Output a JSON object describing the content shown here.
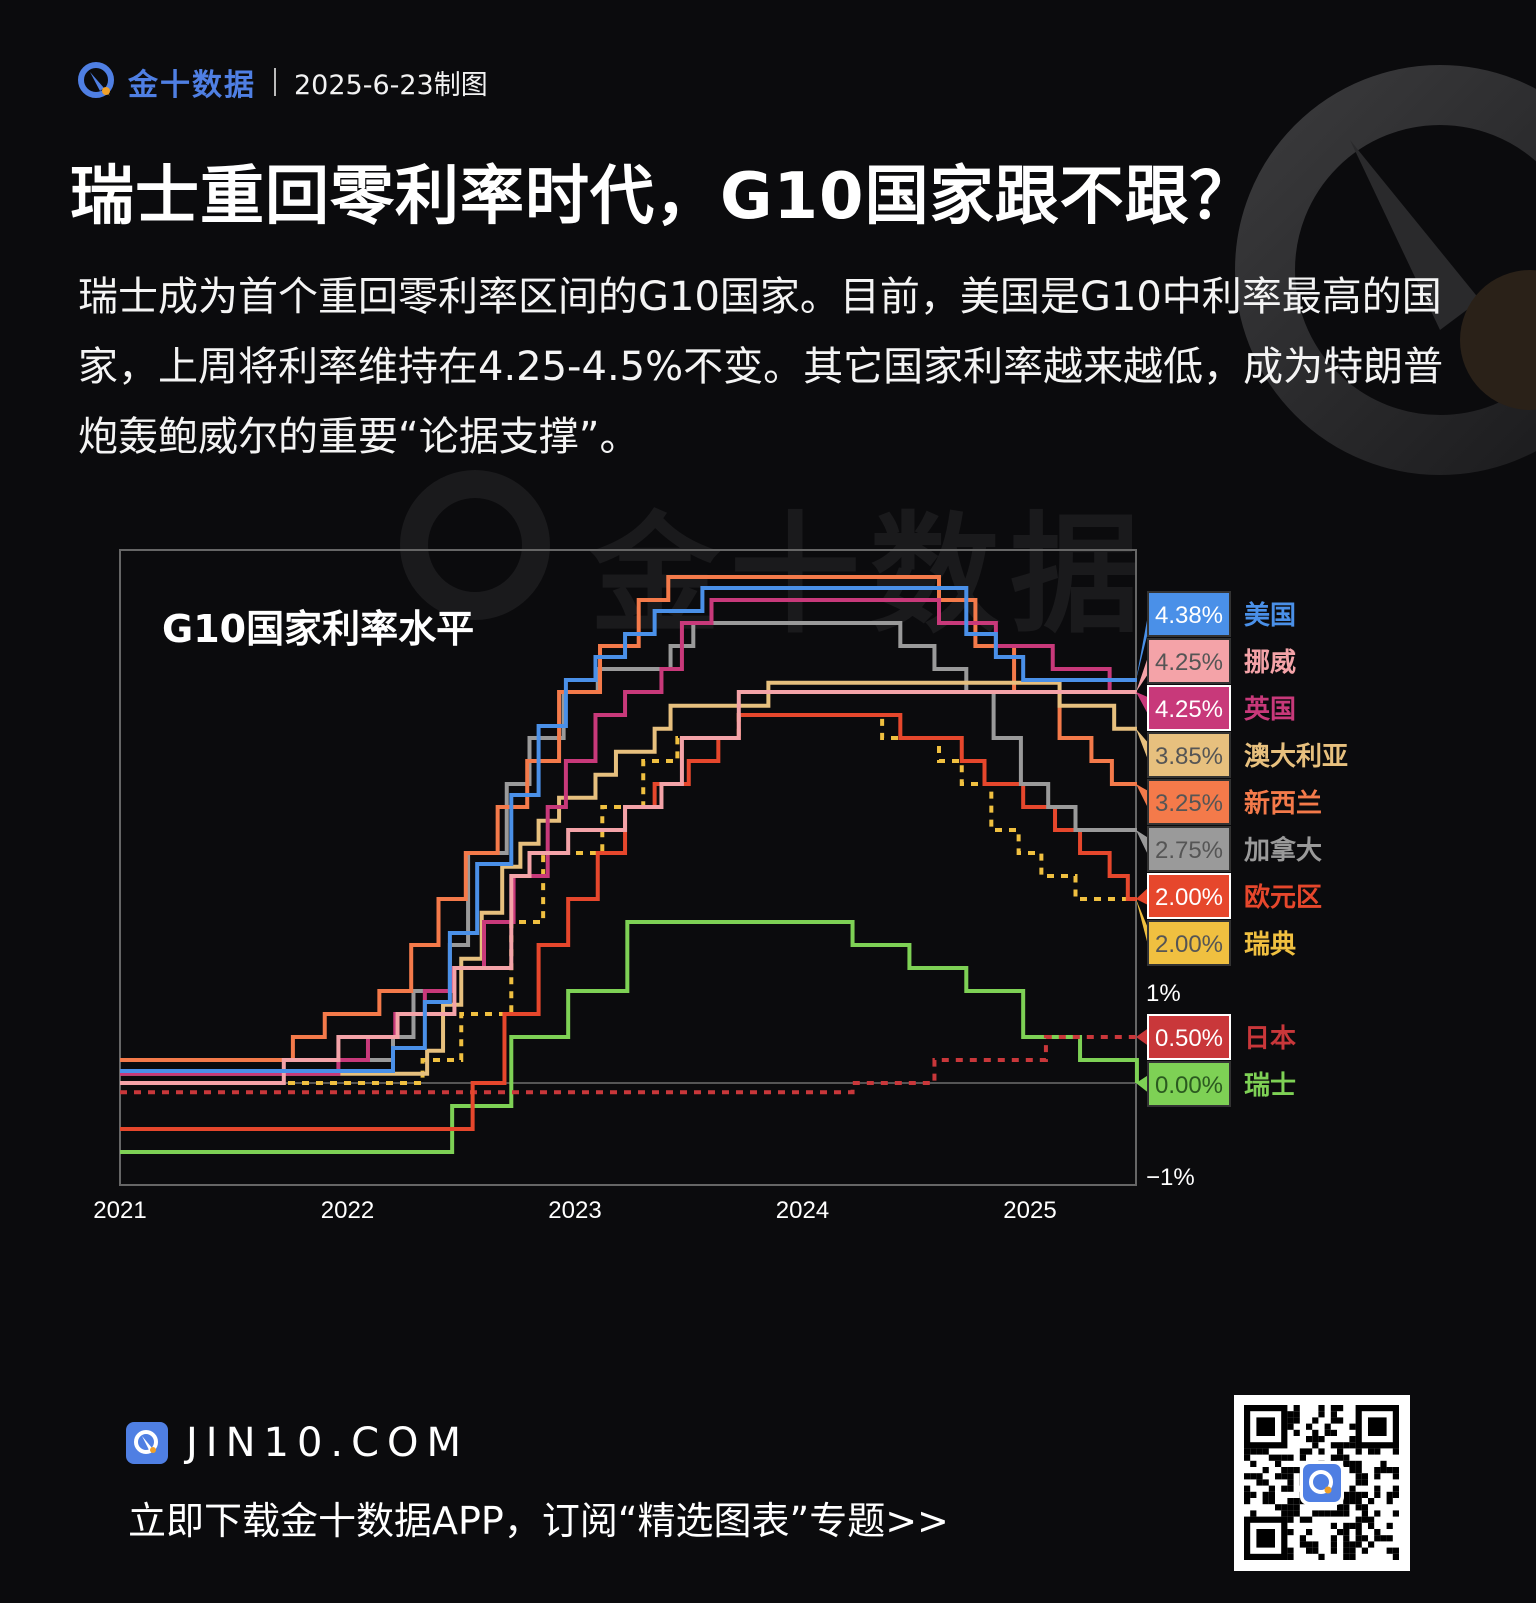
{
  "header": {
    "brand": "金十数据",
    "date_label": "2025-6-23制图"
  },
  "title": "瑞士重回零利率时代，G10国家跟不跟？",
  "description": "瑞士成为首个重回零利率区间的G10国家。目前，美国是G10中利率最高的国家，上周将利率维持在4.25-4.5%不变。其它国家利率越来越低，成为特朗普炮轰鲍威尔的重要“论据支撑”。",
  "watermark": "金十数据",
  "footer": {
    "site": "JIN10.COM",
    "cta": "立即下载金十数据APP，订阅“精选图表”专题>>"
  },
  "colors": {
    "background": "#0b0b0d",
    "brand": "#4f7fe3",
    "axis": "#666666"
  },
  "chart_data": {
    "type": "line",
    "subtype": "step",
    "title": "G10国家利率水平",
    "xlabel": "",
    "ylabel": "",
    "x_ticks": [
      "2021",
      "2022",
      "2023",
      "2024",
      "2025"
    ],
    "y_ticks": [
      "1%",
      "−1%"
    ],
    "xlim": [
      2021.0,
      2025.47
    ],
    "ylim": [
      -1.1,
      5.8
    ],
    "grid": false,
    "legend_position": "right",
    "series": [
      {
        "name": "美国",
        "label": "4.38%",
        "color": "#4a90e8",
        "text_color": "#ffffff",
        "name_color": "#4a90e8",
        "dashed": false,
        "points": [
          [
            2021.0,
            0.13
          ],
          [
            2022.2,
            0.38
          ],
          [
            2022.34,
            0.88
          ],
          [
            2022.45,
            1.63
          ],
          [
            2022.57,
            2.38
          ],
          [
            2022.72,
            3.13
          ],
          [
            2022.84,
            3.88
          ],
          [
            2022.96,
            4.38
          ],
          [
            2023.09,
            4.63
          ],
          [
            2023.22,
            4.88
          ],
          [
            2023.35,
            5.13
          ],
          [
            2023.56,
            5.38
          ],
          [
            2024.72,
            4.88
          ],
          [
            2024.85,
            4.63
          ],
          [
            2024.97,
            4.38
          ],
          [
            2025.47,
            4.38
          ]
        ]
      },
      {
        "name": "挪威",
        "label": "4.25%",
        "color": "#f4a3a8",
        "text_color": "#555555",
        "name_color": "#f4a3a8",
        "dashed": false,
        "points": [
          [
            2021.0,
            0.0
          ],
          [
            2021.72,
            0.25
          ],
          [
            2021.96,
            0.5
          ],
          [
            2022.22,
            0.75
          ],
          [
            2022.47,
            1.25
          ],
          [
            2022.72,
            2.25
          ],
          [
            2022.8,
            2.5
          ],
          [
            2022.97,
            2.75
          ],
          [
            2023.22,
            3.0
          ],
          [
            2023.38,
            3.25
          ],
          [
            2023.47,
            3.75
          ],
          [
            2023.72,
            4.25
          ],
          [
            2025.37,
            4.25
          ],
          [
            2025.47,
            4.25
          ]
        ]
      },
      {
        "name": "英国",
        "label": "4.25%",
        "color": "#c8397a",
        "text_color": "#ffffff",
        "name_color": "#c8397a",
        "dashed": false,
        "points": [
          [
            2021.0,
            0.1
          ],
          [
            2021.96,
            0.25
          ],
          [
            2022.09,
            0.5
          ],
          [
            2022.21,
            0.75
          ],
          [
            2022.34,
            1.0
          ],
          [
            2022.46,
            1.25
          ],
          [
            2022.6,
            1.75
          ],
          [
            2022.73,
            2.25
          ],
          [
            2022.88,
            3.0
          ],
          [
            2022.96,
            3.5
          ],
          [
            2023.09,
            4.0
          ],
          [
            2023.22,
            4.25
          ],
          [
            2023.38,
            4.5
          ],
          [
            2023.47,
            5.0
          ],
          [
            2023.6,
            5.25
          ],
          [
            2024.6,
            5.0
          ],
          [
            2024.85,
            4.75
          ],
          [
            2025.1,
            4.5
          ],
          [
            2025.35,
            4.25
          ],
          [
            2025.47,
            4.25
          ]
        ]
      },
      {
        "name": "澳大利亚",
        "label": "3.85%",
        "color": "#e7c07e",
        "text_color": "#555555",
        "name_color": "#e7c07e",
        "dashed": false,
        "points": [
          [
            2021.0,
            0.1
          ],
          [
            2022.35,
            0.35
          ],
          [
            2022.42,
            0.85
          ],
          [
            2022.5,
            1.35
          ],
          [
            2022.59,
            1.85
          ],
          [
            2022.68,
            2.35
          ],
          [
            2022.76,
            2.6
          ],
          [
            2022.84,
            2.85
          ],
          [
            2022.93,
            3.1
          ],
          [
            2023.09,
            3.35
          ],
          [
            2023.18,
            3.6
          ],
          [
            2023.35,
            3.85
          ],
          [
            2023.42,
            4.1
          ],
          [
            2023.85,
            4.35
          ],
          [
            2025.13,
            4.1
          ],
          [
            2025.37,
            3.85
          ],
          [
            2025.47,
            3.85
          ]
        ]
      },
      {
        "name": "新西兰",
        "label": "3.25%",
        "color": "#f47a4a",
        "text_color": "#555555",
        "name_color": "#f47a4a",
        "dashed": false,
        "points": [
          [
            2021.0,
            0.25
          ],
          [
            2021.76,
            0.5
          ],
          [
            2021.9,
            0.75
          ],
          [
            2022.14,
            1.0
          ],
          [
            2022.28,
            1.5
          ],
          [
            2022.4,
            2.0
          ],
          [
            2022.52,
            2.5
          ],
          [
            2022.66,
            3.0
          ],
          [
            2022.79,
            3.5
          ],
          [
            2022.93,
            4.25
          ],
          [
            2023.11,
            4.75
          ],
          [
            2023.28,
            5.25
          ],
          [
            2023.41,
            5.5
          ],
          [
            2024.6,
            5.25
          ],
          [
            2024.76,
            4.75
          ],
          [
            2024.93,
            4.25
          ],
          [
            2025.13,
            3.75
          ],
          [
            2025.27,
            3.5
          ],
          [
            2025.36,
            3.25
          ],
          [
            2025.47,
            3.25
          ]
        ]
      },
      {
        "name": "加拿大",
        "label": "2.75%",
        "color": "#9a9a9a",
        "text_color": "#555555",
        "name_color": "#9a9a9a",
        "dashed": false,
        "points": [
          [
            2021.0,
            0.25
          ],
          [
            2022.2,
            0.5
          ],
          [
            2022.29,
            1.0
          ],
          [
            2022.45,
            1.5
          ],
          [
            2022.53,
            2.5
          ],
          [
            2022.7,
            3.25
          ],
          [
            2022.8,
            3.75
          ],
          [
            2022.95,
            4.25
          ],
          [
            2023.1,
            4.5
          ],
          [
            2023.42,
            4.75
          ],
          [
            2023.52,
            5.0
          ],
          [
            2024.43,
            4.75
          ],
          [
            2024.58,
            4.5
          ],
          [
            2024.72,
            4.25
          ],
          [
            2024.84,
            3.75
          ],
          [
            2024.96,
            3.25
          ],
          [
            2025.08,
            3.0
          ],
          [
            2025.2,
            2.75
          ],
          [
            2025.47,
            2.75
          ]
        ]
      },
      {
        "name": "欧元区",
        "label": "2.00%",
        "color": "#e6472c",
        "text_color": "#ffffff",
        "name_color": "#e6472c",
        "dashed": false,
        "points": [
          [
            2021.0,
            -0.5
          ],
          [
            2022.55,
            0.0
          ],
          [
            2022.69,
            0.75
          ],
          [
            2022.84,
            1.5
          ],
          [
            2022.97,
            2.0
          ],
          [
            2023.1,
            2.5
          ],
          [
            2023.22,
            3.0
          ],
          [
            2023.35,
            3.25
          ],
          [
            2023.5,
            3.5
          ],
          [
            2023.63,
            3.75
          ],
          [
            2023.72,
            4.0
          ],
          [
            2024.43,
            3.75
          ],
          [
            2024.7,
            3.5
          ],
          [
            2024.8,
            3.25
          ],
          [
            2024.97,
            3.0
          ],
          [
            2025.11,
            2.75
          ],
          [
            2025.22,
            2.5
          ],
          [
            2025.35,
            2.25
          ],
          [
            2025.43,
            2.0
          ],
          [
            2025.47,
            2.0
          ]
        ]
      },
      {
        "name": "瑞典",
        "label": "2.00%",
        "color": "#f0c040",
        "text_color": "#555555",
        "name_color": "#f0c040",
        "dashed": true,
        "points": [
          [
            2021.0,
            0.0
          ],
          [
            2022.33,
            0.25
          ],
          [
            2022.5,
            0.75
          ],
          [
            2022.72,
            1.75
          ],
          [
            2022.86,
            2.5
          ],
          [
            2023.12,
            3.0
          ],
          [
            2023.3,
            3.5
          ],
          [
            2023.45,
            3.75
          ],
          [
            2023.72,
            4.0
          ],
          [
            2024.35,
            3.75
          ],
          [
            2024.6,
            3.5
          ],
          [
            2024.7,
            3.25
          ],
          [
            2024.83,
            2.75
          ],
          [
            2024.95,
            2.5
          ],
          [
            2025.05,
            2.25
          ],
          [
            2025.2,
            2.0
          ],
          [
            2025.47,
            2.0
          ]
        ]
      },
      {
        "name": "日本",
        "label": "0.50%",
        "color": "#c9373a",
        "text_color": "#ffffff",
        "name_color": "#c9373a",
        "dashed": true,
        "points": [
          [
            2021.0,
            -0.1
          ],
          [
            2024.22,
            0.0
          ],
          [
            2024.58,
            0.25
          ],
          [
            2025.07,
            0.5
          ],
          [
            2025.47,
            0.5
          ]
        ]
      },
      {
        "name": "瑞士",
        "label": "0.00%",
        "color": "#7ed155",
        "text_color": "#2b5a20",
        "name_color": "#7ed155",
        "dashed": false,
        "points": [
          [
            2021.0,
            -0.75
          ],
          [
            2022.46,
            -0.25
          ],
          [
            2022.72,
            0.5
          ],
          [
            2022.97,
            1.0
          ],
          [
            2023.23,
            1.75
          ],
          [
            2024.22,
            1.5
          ],
          [
            2024.47,
            1.25
          ],
          [
            2024.72,
            1.0
          ],
          [
            2024.97,
            0.5
          ],
          [
            2025.22,
            0.25
          ],
          [
            2025.47,
            0.0
          ]
        ]
      }
    ]
  }
}
